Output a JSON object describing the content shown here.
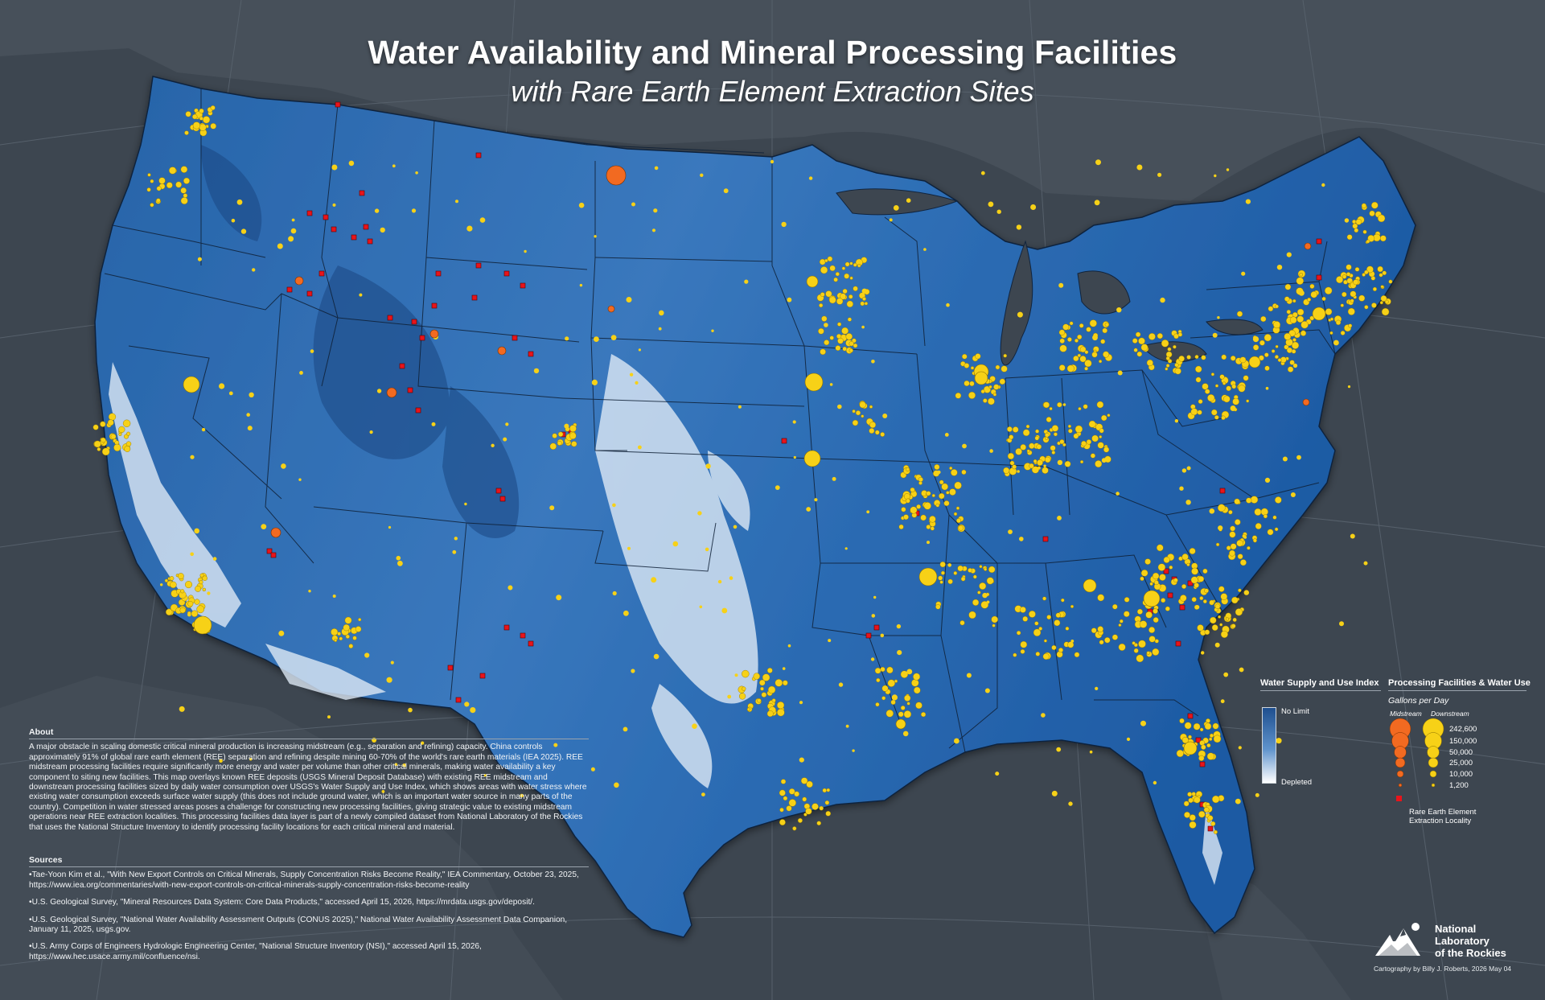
{
  "title": "Water Availability and Mineral Processing Facilities",
  "subtitle": "with Rare Earth Element Extraction Sites",
  "about": {
    "heading": "About",
    "body": "A major obstacle in scaling domestic critical mineral production is increasing midstream (e.g., separation and refining) capacity. China controls approximately 91% of global rare earth element (REE) separation and refining despite mining 60-70% of the world's rare earth materials (IEA 2025). REE midstream processing facilities require significantly more energy and water per volume than other critical minerals, making water availability a key component to siting new facilities. This map overlays known REE deposits (USGS Mineral Deposit Database) with existing REE midstream and downstream processing facilities sized by daily water consumption over USGS's Water Supply and Use Index, which shows areas with water stress where existing water consumption exceeds surface water supply (this does not include ground water, which is an important water source in many parts of the country). Competition in water stressed areas poses a challenge for constructing new processing facilities, giving strategic value to existing midstream operations near REE extraction localities. This processing facilities data layer is part of a newly compiled dataset from National Laboratory of the Rockies that uses the National Structure Inventory to identify processing facility locations for each critical mineral and material."
  },
  "sources": {
    "heading": "Sources",
    "items": [
      "•Tae-Yoon Kim et al., \"With New Export Controls on Critical Minerals, Supply Concentration Risks Become Reality,\" IEA Commentary, October 23, 2025, https://www.iea.org/commentaries/with-new-export-controls-on-critical-minerals-supply-concentration-risks-become-reality",
      "•U.S. Geological Survey, \"Mineral Resources Data System: Core Data Products,\" accessed April 15, 2026, https://mrdata.usgs.gov/deposit/.",
      "•U.S. Geological Survey, \"National Water Availability Assessment Outputs (CONUS 2025),\" National Water Availability Assessment Data Companion, January 11, 2025, usgs.gov.",
      "•U.S. Army Corps of Engineers Hydrologic Engineering Center, \"National Structure Inventory (NSI),\" accessed April 15, 2026, https://www.hec.usace.army.mil/confluence/nsi."
    ]
  },
  "legend_wsui": {
    "title": "Water Supply and Use Index",
    "top_label": "No Limit",
    "bottom_label": "Depleted",
    "colors": [
      "#1e4f8f",
      "#5f93cc",
      "#ffffff"
    ]
  },
  "legend_processing": {
    "title": "Processing Facilities & Water Use",
    "units": "Gallons per Day",
    "col_midstream": "Midstream",
    "col_downstream": "Downstream",
    "levels": [
      "242,600",
      "150,000",
      "50,000",
      "25,000",
      "10,000",
      "1,200"
    ],
    "ree_label": "Rare Earth Element Extraction Locality",
    "colors": {
      "midstream": "#f26a21",
      "downstream": "#f7d117",
      "ree": "#e8141b"
    }
  },
  "logo": {
    "name_line1": "National",
    "name_line2": "Laboratory",
    "name_line3": "of the Rockies"
  },
  "credit": "Cartography by Billy J. Roberts, 2026 May 04"
}
